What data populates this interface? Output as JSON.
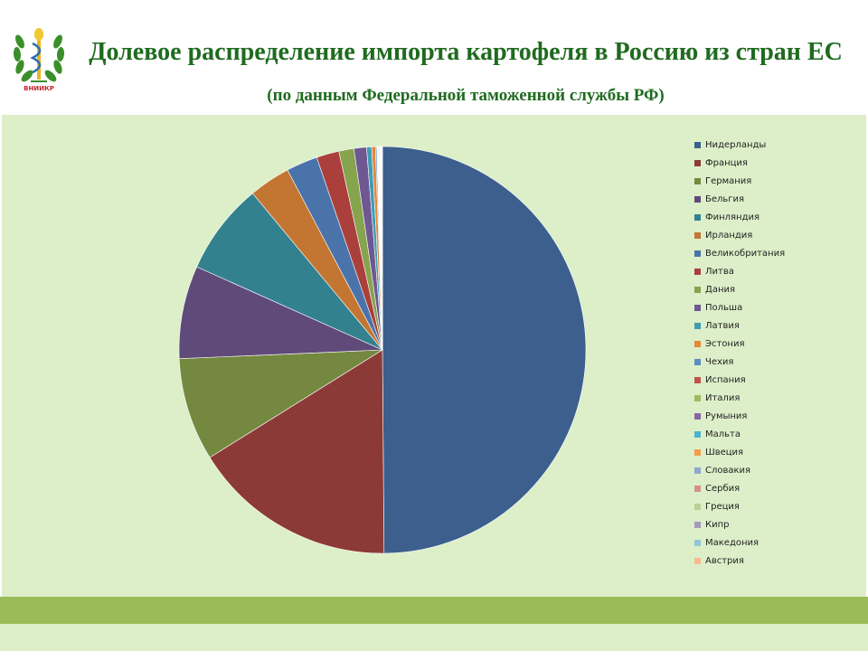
{
  "header": {
    "logo_text": "ВНИИКР",
    "title_main": "Долевое распределение импорта картофеля в Россию из стран ЕС",
    "title_sub": "(по данным Федеральной таможенной службы РФ)"
  },
  "colors": {
    "title": "#1f6b1f",
    "panel": "#dcefc8",
    "band": "#9bbb59"
  },
  "chart_data": {
    "type": "pie",
    "categories": [
      "Нидерланды",
      "Франция",
      "Германия",
      "Бельгия",
      "Финляндия",
      "Ирландия",
      "Великобритания",
      "Литва",
      "Дания",
      "Польша",
      "Латвия",
      "Эстония",
      "Чехия",
      "Испания",
      "Италия",
      "Румыния",
      "Мальта",
      "Швеция",
      "Словакия",
      "Сербия",
      "Греция",
      "Кипр",
      "Македония",
      "Австрия"
    ],
    "values": [
      50.0,
      16.3,
      8.2,
      7.4,
      7.3,
      3.3,
      2.5,
      1.8,
      1.2,
      1.0,
      0.4,
      0.3,
      0.1,
      0.05,
      0.05,
      0.05,
      0.05,
      0.05,
      0.05,
      0.03,
      0.03,
      0.03,
      0.03,
      0.03
    ],
    "colors": [
      "#3c5f8e",
      "#8c3a38",
      "#74893f",
      "#5f4a7a",
      "#33818f",
      "#c37631",
      "#4a73aa",
      "#aa3f3c",
      "#86a34e",
      "#6f5891",
      "#3f9db3",
      "#e3893a",
      "#5b8ac4",
      "#c4514e",
      "#9cbb62",
      "#8768a5",
      "#4bb4cc",
      "#f49b4f",
      "#8ea8d1",
      "#d4908e",
      "#b9cf95",
      "#a798c0",
      "#91c7d6",
      "#f7b991"
    ],
    "legend_position": "right"
  }
}
